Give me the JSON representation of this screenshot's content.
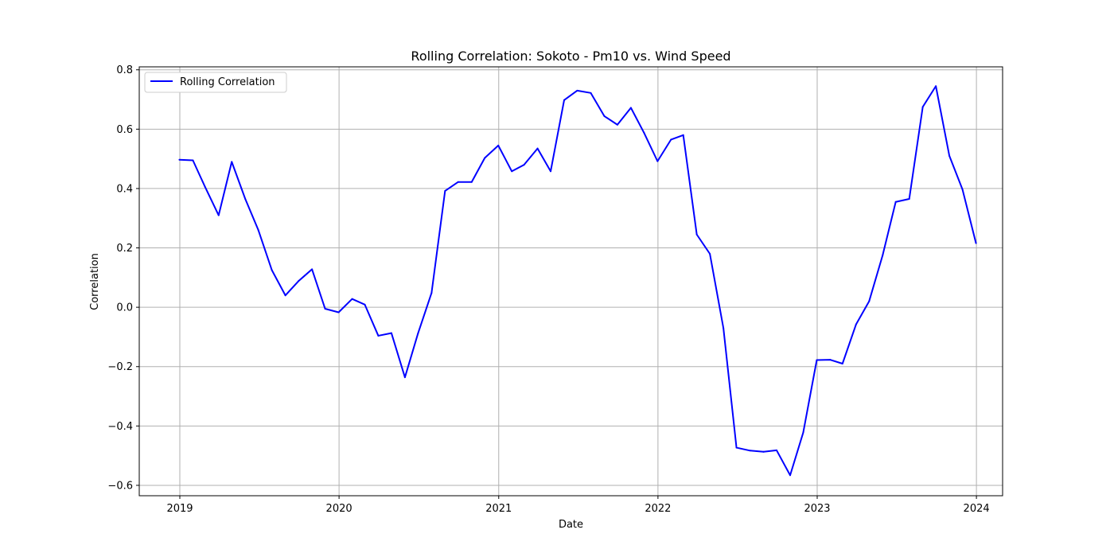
{
  "chart_data": {
    "type": "line",
    "title": "Rolling Correlation: Sokoto - Pm10 vs. Wind Speed",
    "xlabel": "Date",
    "ylabel": "Correlation",
    "x_is_date": true,
    "xlim": [
      "2018-09-30",
      "2024-03-01"
    ],
    "ylim": [
      -0.635,
      0.81
    ],
    "x_ticks": [
      "2019-01-01",
      "2020-01-01",
      "2021-01-01",
      "2022-01-01",
      "2023-01-01",
      "2024-01-01"
    ],
    "x_tick_labels": [
      "2019",
      "2020",
      "2021",
      "2022",
      "2023",
      "2024"
    ],
    "y_ticks": [
      -0.6,
      -0.4,
      -0.2,
      0.0,
      0.2,
      0.4,
      0.6,
      0.8
    ],
    "y_tick_labels": [
      "−0.6",
      "−0.4",
      "−0.2",
      "0.0",
      "0.2",
      "0.4",
      "0.6",
      "0.8"
    ],
    "grid": true,
    "legend_position": "top-left",
    "series": [
      {
        "name": "Rolling Correlation",
        "color": "#0000ff",
        "x": [
          "2018-12-31",
          "2019-01-31",
          "2019-02-28",
          "2019-03-31",
          "2019-04-30",
          "2019-05-31",
          "2019-06-30",
          "2019-07-31",
          "2019-08-31",
          "2019-09-30",
          "2019-10-31",
          "2019-11-30",
          "2019-12-31",
          "2020-01-31",
          "2020-02-29",
          "2020-03-31",
          "2020-04-30",
          "2020-05-31",
          "2020-06-30",
          "2020-07-31",
          "2020-08-31",
          "2020-09-30",
          "2020-10-31",
          "2020-11-30",
          "2020-12-31",
          "2021-01-31",
          "2021-02-28",
          "2021-03-31",
          "2021-04-30",
          "2021-05-31",
          "2021-06-30",
          "2021-07-31",
          "2021-08-31",
          "2021-09-30",
          "2021-10-31",
          "2021-11-30",
          "2021-12-31",
          "2022-01-31",
          "2022-02-28",
          "2022-03-31",
          "2022-04-30",
          "2022-05-31",
          "2022-06-30",
          "2022-07-31",
          "2022-08-31",
          "2022-09-30",
          "2022-10-31",
          "2022-11-30",
          "2022-12-31",
          "2023-01-31",
          "2023-02-28",
          "2023-03-31",
          "2023-04-30",
          "2023-05-31",
          "2023-06-30",
          "2023-07-31",
          "2023-08-31",
          "2023-09-30",
          "2023-10-31",
          "2023-11-30",
          "2023-12-31"
        ],
        "values": [
          0.497,
          0.495,
          0.405,
          0.31,
          0.49,
          0.365,
          0.26,
          0.125,
          0.04,
          0.088,
          0.128,
          -0.005,
          -0.017,
          0.028,
          0.009,
          -0.096,
          -0.087,
          -0.236,
          -0.088,
          0.048,
          0.392,
          0.422,
          0.422,
          0.503,
          0.545,
          0.458,
          0.48,
          0.535,
          0.458,
          0.698,
          0.73,
          0.722,
          0.644,
          0.615,
          0.672,
          0.588,
          0.492,
          0.565,
          0.58,
          0.245,
          0.18,
          -0.07,
          -0.473,
          -0.483,
          -0.487,
          -0.482,
          -0.566,
          -0.422,
          -0.178,
          -0.177,
          -0.19,
          -0.058,
          0.02,
          0.175,
          0.355,
          0.365,
          0.675,
          0.745,
          0.51,
          0.397,
          0.216
        ]
      }
    ]
  }
}
